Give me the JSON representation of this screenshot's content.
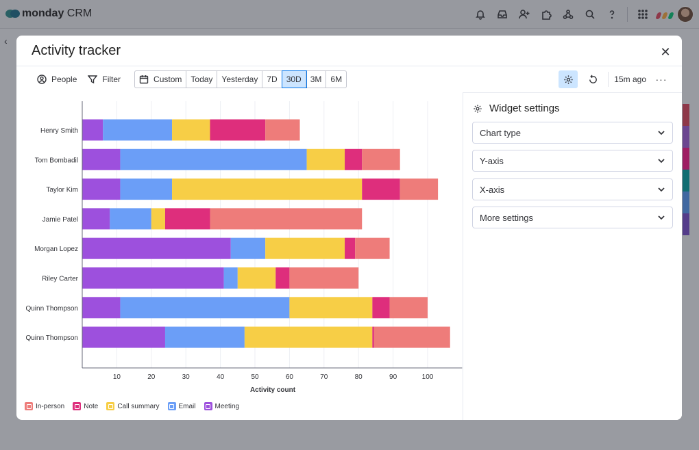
{
  "app": {
    "brand": "monday",
    "brand_suffix": "CRM"
  },
  "topbar_icons": [
    "bell-icon",
    "inbox-icon",
    "invite-icon",
    "apps-icon",
    "integrations-icon",
    "search-icon",
    "help-icon",
    "grid-icon"
  ],
  "modal": {
    "title": "Activity tracker"
  },
  "toolbar": {
    "people": "People",
    "filter": "Filter",
    "ranges": [
      "Custom",
      "Today",
      "Yesterday",
      "7D",
      "30D",
      "3M",
      "6M"
    ],
    "active_range": "30D",
    "updated": "15m ago"
  },
  "panel": {
    "title": "Widget settings",
    "sections": [
      "Chart type",
      "Y-axis",
      "X-axis",
      "More settings"
    ]
  },
  "chart_data": {
    "type": "bar",
    "orientation": "horizontal",
    "stacked": true,
    "xlabel": "Activity count",
    "xlim": [
      0,
      110
    ],
    "xticks": [
      10,
      20,
      30,
      40,
      50,
      60,
      70,
      80,
      90,
      100
    ],
    "grid": true,
    "legend_position": "bottom-left",
    "categories": [
      "Henry Smith",
      "Tom Bombadil",
      "Taylor Kim",
      "Jamie Patel",
      "Morgan Lopez",
      "Riley Carter",
      "Quinn Thompson",
      "Quinn Thompson"
    ],
    "series": [
      {
        "name": "Meeting",
        "color": "#9d50dd",
        "values": [
          6,
          11,
          11,
          8,
          43,
          41,
          11,
          24
        ]
      },
      {
        "name": "Email",
        "color": "#6b9ef7",
        "values": [
          20,
          54,
          15,
          12,
          10,
          4,
          49,
          23
        ]
      },
      {
        "name": "Call summary",
        "color": "#f7ce46",
        "values": [
          11,
          11,
          55,
          4,
          23,
          11,
          24,
          37
        ]
      },
      {
        "name": "Note",
        "color": "#de2e7c",
        "values": [
          16,
          5,
          11,
          13,
          3,
          4,
          5,
          0.5
        ]
      },
      {
        "name": "In-person",
        "color": "#ee7c7a",
        "values": [
          10,
          11,
          11,
          44,
          10,
          20,
          11,
          22
        ]
      }
    ],
    "legend_order": [
      "In-person",
      "Note",
      "Call summary",
      "Email",
      "Meeting"
    ]
  }
}
